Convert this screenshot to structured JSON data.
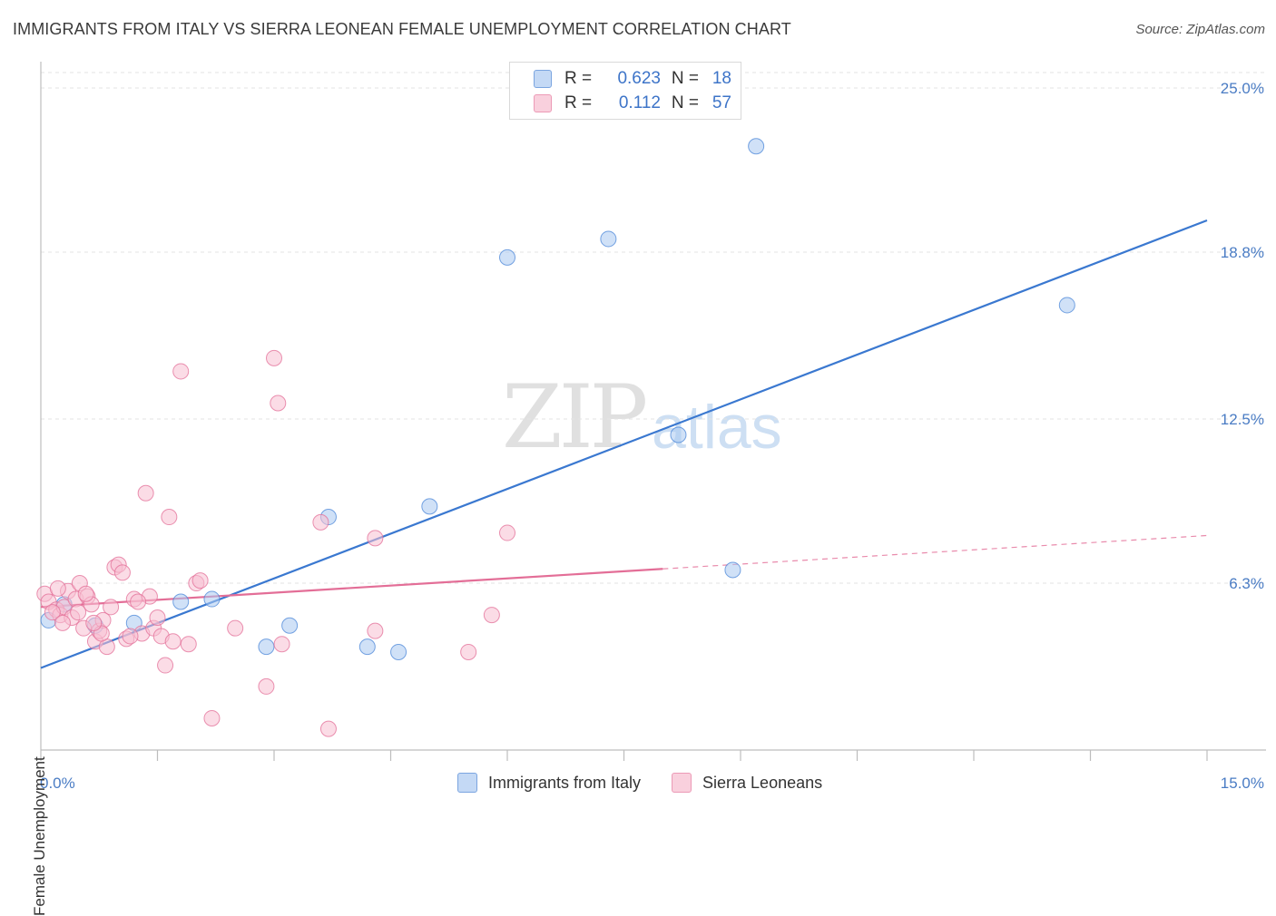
{
  "header": {
    "title": "IMMIGRANTS FROM ITALY VS SIERRA LEONEAN FEMALE UNEMPLOYMENT CORRELATION CHART",
    "source": "Source: ZipAtlas.com"
  },
  "watermark": {
    "zip": "ZIP",
    "atlas": "atlas"
  },
  "legend": {
    "rows": [
      {
        "r_label": "R =",
        "r_value": "0.623",
        "n_label": "N =",
        "n_value": "18",
        "color": "#a9c8f0"
      },
      {
        "r_label": "R =",
        "r_value": "0.112",
        "n_label": "N =",
        "n_value": "57",
        "color": "#f7bfd1"
      }
    ]
  },
  "bottom_legend": {
    "items": [
      {
        "label": "Immigrants from Italy",
        "color": "#a9c8f0"
      },
      {
        "label": "Sierra Leoneans",
        "color": "#f7bfd1"
      }
    ]
  },
  "chart_data": {
    "type": "scatter",
    "title": "IMMIGRANTS FROM ITALY VS SIERRA LEONEAN FEMALE UNEMPLOYMENT CORRELATION CHART",
    "xlabel": "",
    "ylabel": "Female Unemployment",
    "xlim": [
      0,
      15
    ],
    "ylim": [
      0,
      25
    ],
    "x_tick_labels": [
      "0.0%",
      "15.0%"
    ],
    "y_ticks": [
      6.3,
      12.5,
      18.8,
      25.0
    ],
    "y_tick_labels": [
      "6.3%",
      "12.5%",
      "18.8%",
      "25.0%"
    ],
    "grid": true,
    "series": [
      {
        "name": "Immigrants from Italy",
        "color": "#4a86d8",
        "fill": "#a9c8f0",
        "points": [
          [
            0.1,
            4.9
          ],
          [
            0.3,
            5.5
          ],
          [
            0.7,
            4.7
          ],
          [
            1.2,
            4.8
          ],
          [
            1.8,
            5.6
          ],
          [
            2.2,
            5.7
          ],
          [
            2.9,
            3.9
          ],
          [
            3.2,
            4.7
          ],
          [
            3.7,
            8.8
          ],
          [
            4.2,
            3.9
          ],
          [
            4.6,
            3.7
          ],
          [
            5.0,
            9.2
          ],
          [
            6.0,
            18.6
          ],
          [
            7.3,
            19.3
          ],
          [
            8.2,
            11.9
          ],
          [
            8.9,
            6.8
          ],
          [
            9.2,
            22.8
          ],
          [
            13.2,
            16.8
          ]
        ],
        "trend": {
          "x": [
            0,
            15
          ],
          "y": [
            3.1,
            20.0
          ],
          "dashed_from": null,
          "color": "#3a78d0"
        }
      },
      {
        "name": "Sierra Leoneans",
        "color": "#e36e97",
        "fill": "#f7bfd1",
        "points": [
          [
            0.05,
            5.9
          ],
          [
            0.1,
            5.6
          ],
          [
            0.2,
            5.3
          ],
          [
            0.25,
            5.1
          ],
          [
            0.3,
            5.4
          ],
          [
            0.35,
            6.0
          ],
          [
            0.4,
            5.0
          ],
          [
            0.45,
            5.7
          ],
          [
            0.5,
            6.3
          ],
          [
            0.55,
            4.6
          ],
          [
            0.6,
            5.8
          ],
          [
            0.65,
            5.5
          ],
          [
            0.7,
            4.1
          ],
          [
            0.75,
            4.5
          ],
          [
            0.8,
            4.9
          ],
          [
            0.85,
            3.9
          ],
          [
            0.9,
            5.4
          ],
          [
            0.95,
            6.9
          ],
          [
            1.0,
            7.0
          ],
          [
            1.05,
            6.7
          ],
          [
            1.1,
            4.2
          ],
          [
            1.2,
            5.7
          ],
          [
            1.3,
            4.4
          ],
          [
            1.35,
            9.7
          ],
          [
            1.4,
            5.8
          ],
          [
            1.45,
            4.6
          ],
          [
            1.5,
            5.0
          ],
          [
            1.55,
            4.3
          ],
          [
            1.6,
            3.2
          ],
          [
            1.7,
            4.1
          ],
          [
            1.65,
            8.8
          ],
          [
            1.8,
            14.3
          ],
          [
            1.9,
            4.0
          ],
          [
            2.0,
            6.3
          ],
          [
            2.05,
            6.4
          ],
          [
            2.5,
            4.6
          ],
          [
            2.9,
            2.4
          ],
          [
            3.0,
            14.8
          ],
          [
            3.05,
            13.1
          ],
          [
            3.1,
            4.0
          ],
          [
            3.6,
            8.6
          ],
          [
            3.7,
            0.8
          ],
          [
            4.3,
            8.0
          ],
          [
            4.3,
            4.5
          ],
          [
            5.5,
            3.7
          ],
          [
            5.8,
            5.1
          ],
          [
            6.0,
            8.2
          ],
          [
            0.15,
            5.2
          ],
          [
            0.22,
            6.1
          ],
          [
            0.28,
            4.8
          ],
          [
            0.48,
            5.2
          ],
          [
            0.58,
            5.9
          ],
          [
            0.78,
            4.4
          ],
          [
            1.15,
            4.3
          ],
          [
            2.2,
            1.2
          ],
          [
            1.25,
            5.6
          ],
          [
            0.68,
            4.8
          ]
        ],
        "trend": {
          "x": [
            0,
            15
          ],
          "y": [
            5.4,
            8.1
          ],
          "dashed_from": 8.0,
          "color": "#e36e97"
        }
      }
    ]
  }
}
